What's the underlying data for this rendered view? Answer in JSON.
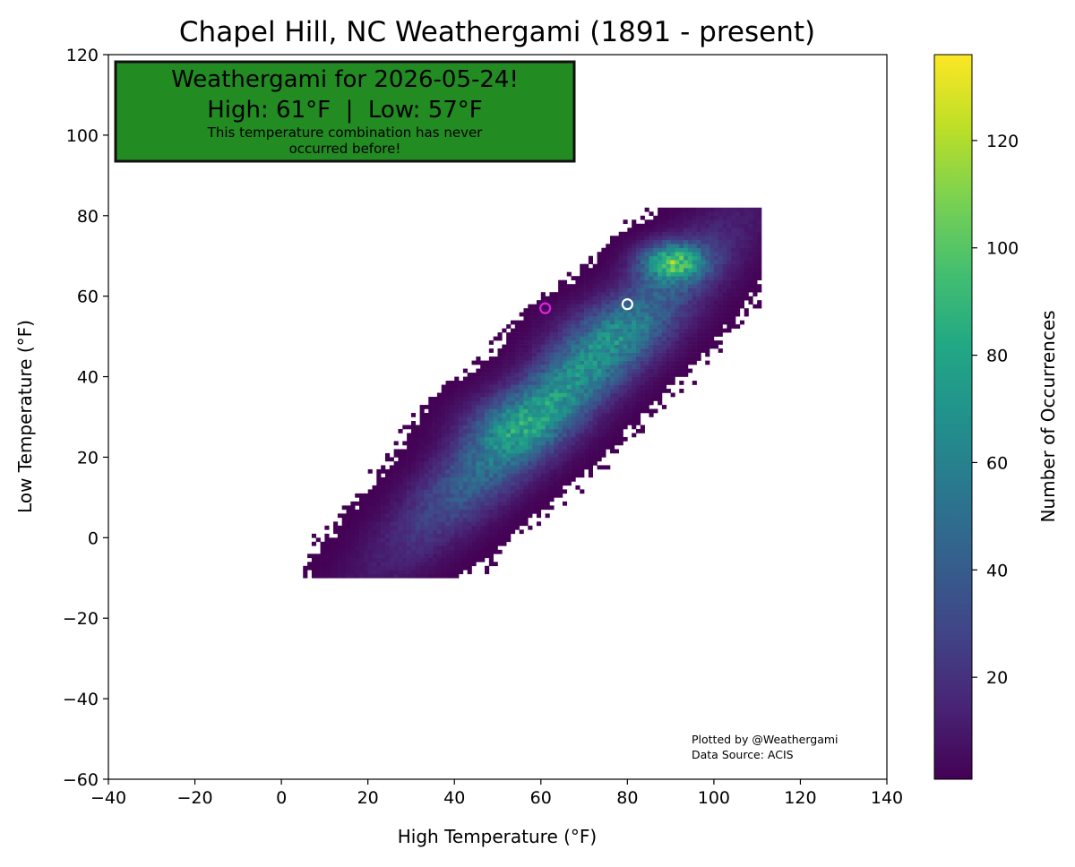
{
  "chart_data": {
    "type": "heatmap",
    "title": "Chapel Hill, NC Weathergami (1891 - present)",
    "xlabel": "High Temperature (°F)",
    "ylabel": "Low Temperature (°F)",
    "xlim": [
      -40,
      140
    ],
    "ylim": [
      -60,
      120
    ],
    "x_ticks": [
      -40,
      -20,
      0,
      20,
      40,
      60,
      80,
      100,
      120,
      140
    ],
    "y_ticks": [
      -60,
      -40,
      -20,
      0,
      20,
      40,
      60,
      80,
      100,
      120
    ],
    "x_tick_labels": [
      "−40",
      "−20",
      "0",
      "20",
      "40",
      "60",
      "80",
      "100",
      "120",
      "140"
    ],
    "y_tick_labels": [
      "−60",
      "−40",
      "−20",
      "0",
      "20",
      "40",
      "60",
      "80",
      "100",
      "120"
    ],
    "colormap": "viridis",
    "colorbar": {
      "label": "Number of Occurrences",
      "range": [
        1,
        136
      ],
      "ticks": [
        20,
        40,
        60,
        80,
        100,
        120
      ],
      "tick_labels": [
        "20",
        "40",
        "60",
        "80",
        "100",
        "120"
      ]
    },
    "density_peaks": [
      {
        "high_f": 90,
        "low_f": 68,
        "count": 135
      },
      {
        "high_f": 52,
        "low_f": 28,
        "count": 60
      },
      {
        "high_f": 75,
        "low_f": 50,
        "count": 55
      }
    ],
    "markers": [
      {
        "role": "today",
        "high_f": 61,
        "low_f": 57,
        "color": "#e020e0"
      },
      {
        "role": "reference",
        "high_f": 80,
        "low_f": 58,
        "color": "#ffffff"
      }
    ],
    "grid": false,
    "legend": "none"
  },
  "banner": {
    "line1": "Weathergami for 2026-05-24!",
    "line2": "High: 61°F  |  Low: 57°F",
    "note_line1": "This temperature combination has never",
    "note_line2": "occurred before!",
    "background": "#228b22",
    "border": "#111111"
  },
  "credit": {
    "line1": "Plotted by @Weathergami",
    "line2": "Data Source: ACIS"
  }
}
